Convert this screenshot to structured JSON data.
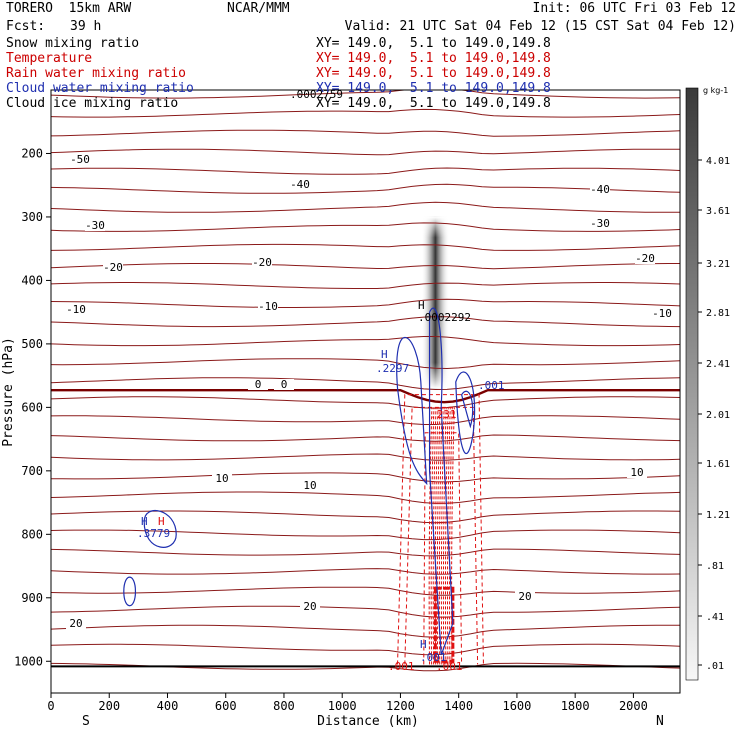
{
  "header": {
    "model": "TORERO  15km ARW",
    "center": "NCAR/MMM",
    "init": "Init: 06 UTC Fri 03 Feb 12",
    "fcst_label": "Fcst:",
    "fcst_value": "39 h",
    "valid": "Valid: 21 UTC Sat 04 Feb 12 (15 CST Sat 04 Feb 12)"
  },
  "fields": [
    {
      "name": "Snow mixing ratio",
      "xy": "XY= 149.0,  5.1 to 149.0,149.8",
      "color": "#000000"
    },
    {
      "name": "Temperature",
      "xy": "XY= 149.0,  5.1 to 149.0,149.8",
      "color": "#cc0000"
    },
    {
      "name": "Rain water mixing ratio",
      "xy": "XY= 149.0,  5.1 to 149.0,149.8",
      "color": "#cc0000"
    },
    {
      "name": "Cloud water mixing ratio",
      "xy": "XY= 149.0,  5.1 to 149.0,149.8",
      "color": "#1f2fb0"
    },
    {
      "name": "Cloud ice mixing ratio",
      "xy": "XY= 149.0,  5.1 to 149.0,149.8",
      "color": "#000000"
    }
  ],
  "colorbar": {
    "unit": "g kg-1",
    "labels": [
      "4.01",
      "3.61",
      "3.21",
      "2.81",
      "2.41",
      "2.01",
      "1.61",
      "1.21",
      ".81",
      ".41",
      ".01"
    ]
  },
  "chart_data": {
    "type": "contour",
    "ylabel": "Pressure (hPa)",
    "xlabel": "Distance (km)",
    "x_ticks": [
      0,
      200,
      400,
      600,
      800,
      1000,
      1200,
      1400,
      1600,
      1800,
      2000
    ],
    "y_ticks": [
      200,
      300,
      400,
      500,
      600,
      700,
      800,
      900,
      1000
    ],
    "xlim": [
      0,
      2160
    ],
    "ylim": [
      1050,
      100
    ],
    "direction_left": "S",
    "direction_right": "N",
    "temperature_contour_labels": [
      "-50",
      "-40",
      "-30",
      "-20",
      "-10",
      "0",
      "10",
      "20"
    ],
    "annotations": [
      ".0002759",
      "H",
      ".0002292",
      "H",
      ".2297",
      ".001",
      "H",
      "H",
      ".3779",
      ".231",
      "H",
      ".001",
      ".001",
      ".001"
    ],
    "colors": {
      "temperature": "#8b1a1a",
      "zero_isotherm": "#7a0000",
      "rain": "#e01010",
      "cloud_water": "#1f2fb0",
      "snow_shading": "#303030"
    }
  }
}
